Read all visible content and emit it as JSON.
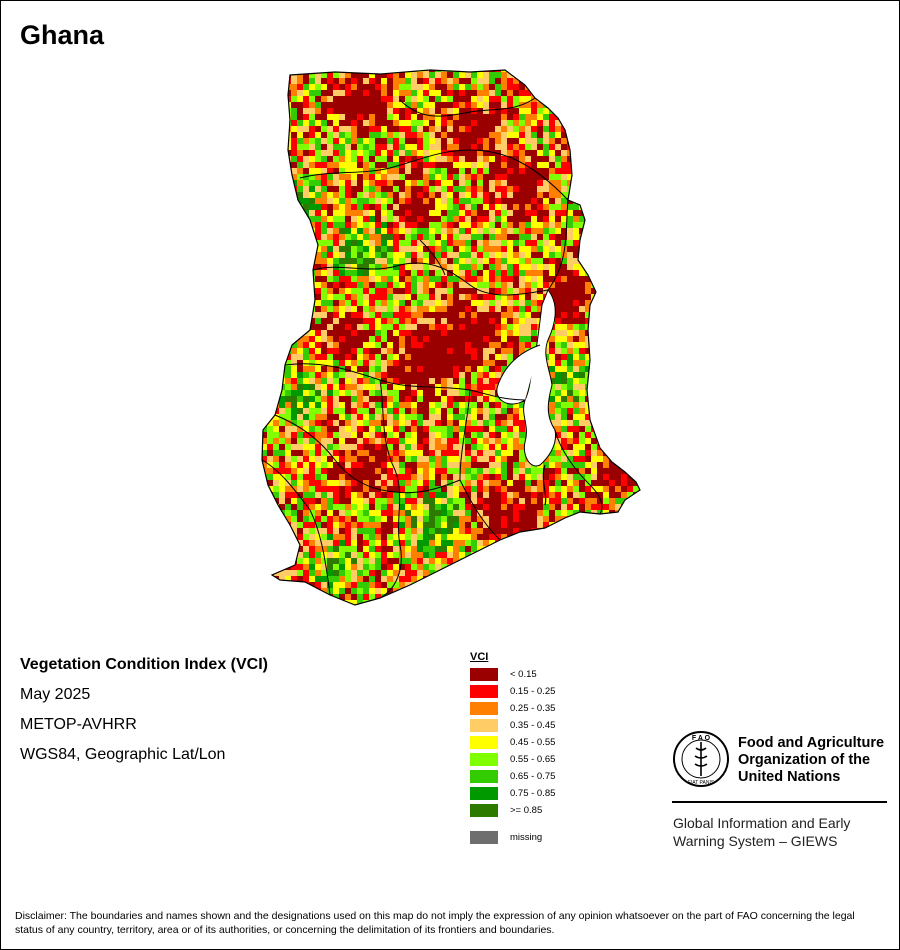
{
  "map": {
    "country": "Ghana",
    "info": {
      "title": "Vegetation Condition Index (VCI)",
      "period": "May 2025",
      "sensor": "METOP-AVHRR",
      "projection": "WGS84, Geographic Lat/Lon"
    },
    "legend": {
      "title": "VCI",
      "classes": [
        {
          "label": "< 0.15",
          "color": "#9b0000"
        },
        {
          "label": "0.15 - 0.25",
          "color": "#ff0000"
        },
        {
          "label": "0.25 - 0.35",
          "color": "#ff8000"
        },
        {
          "label": "0.35 - 0.45",
          "color": "#ffcc66"
        },
        {
          "label": "0.45 - 0.55",
          "color": "#ffff00"
        },
        {
          "label": "0.55 - 0.65",
          "color": "#80ff00"
        },
        {
          "label": "0.65 - 0.75",
          "color": "#33cc00"
        },
        {
          "label": "0.75 - 0.85",
          "color": "#009900"
        },
        {
          "label": ">= 0.85",
          "color": "#2d7a00"
        }
      ],
      "missing": {
        "label": "missing",
        "color": "#6e6e6e"
      }
    }
  },
  "organization": {
    "name_line1": "Food and Agriculture",
    "name_line2": "Organization of the",
    "name_line3": "United Nations",
    "system_line1": "Global Information and Early",
    "system_line2": "Warning System – GIEWS",
    "logo_letters": "F A O",
    "logo_motto": "FIAT PANIS"
  },
  "disclaimer": "Disclaimer: The boundaries and names shown and the designations used on this map do not imply the expression of any opinion whatsoever on the part of FAO concerning the legal status of any country, territory, area or of its authorities, or concerning the delimitation of its frontiers and boundaries."
}
